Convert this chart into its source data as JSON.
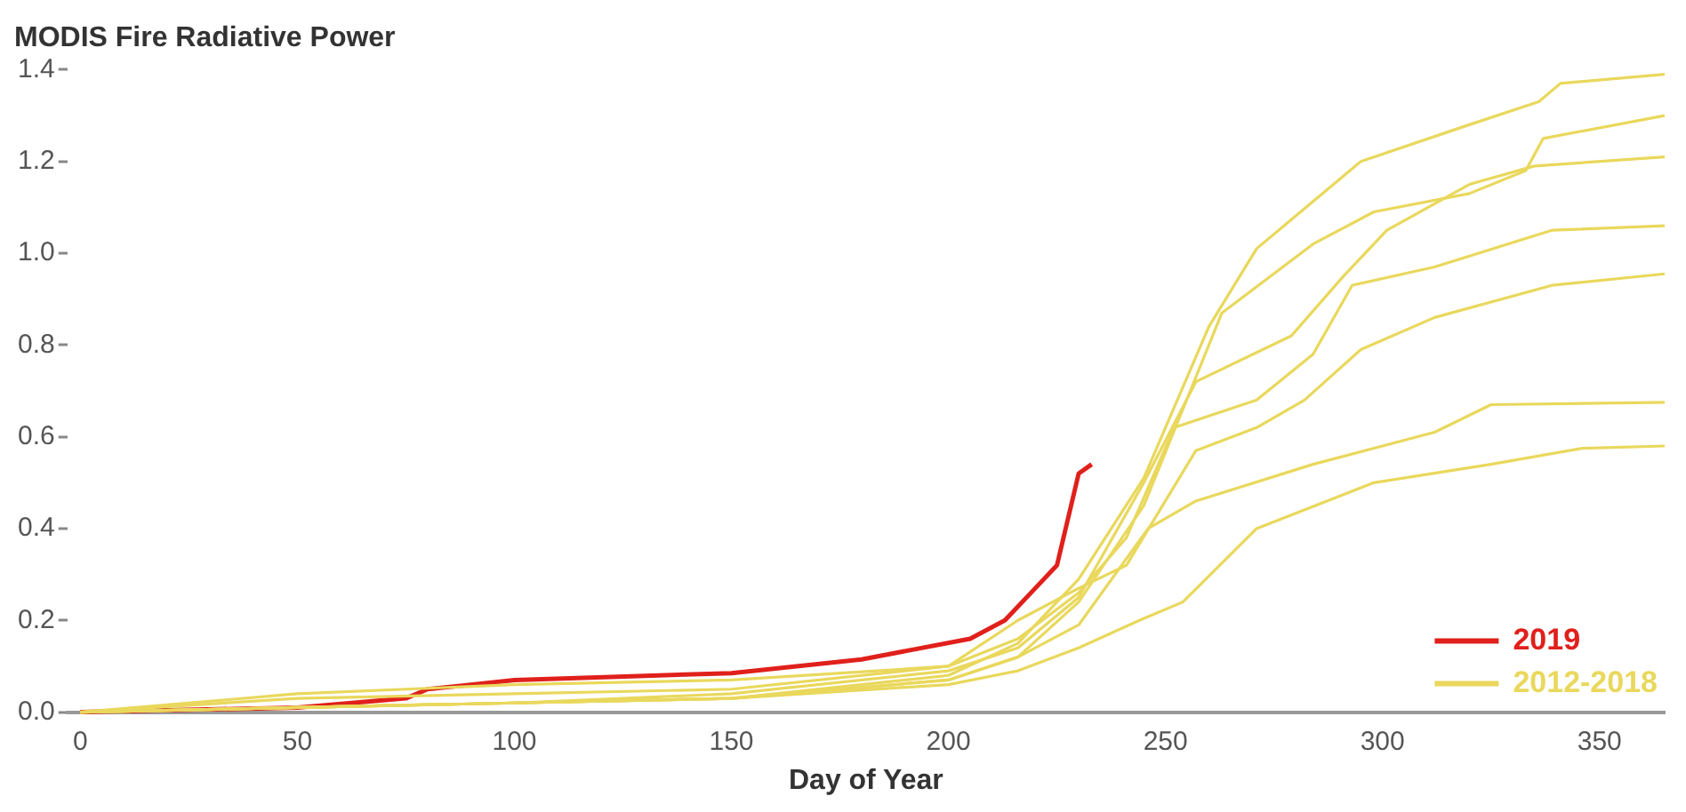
{
  "chart_data": {
    "type": "line",
    "title": "MODIS Fire Radiative Power",
    "xlabel": "Day of Year",
    "xlim": [
      -3,
      365
    ],
    "xticks": [
      0,
      50,
      100,
      150,
      200,
      250,
      300,
      350
    ],
    "ylim": [
      0,
      1.4
    ],
    "yticks": [
      {
        "value": 0,
        "label": "0.0"
      },
      0.2,
      0.4,
      0.6,
      0.8,
      {
        "value": 1,
        "label": "1.0"
      },
      1.2,
      1.4
    ],
    "grid": false,
    "legend": "bottom right",
    "marker": "none",
    "line_style": "solid",
    "series": [
      {
        "name": "2012-2018",
        "color": "#e9d85c",
        "x": [
          0,
          50,
          100,
          150,
          200,
          216,
          230,
          245,
          260,
          271,
          295,
          320,
          336,
          341,
          365
        ],
        "values": [
          0,
          0.01,
          0.02,
          0.03,
          0.08,
          0.15,
          0.29,
          0.51,
          0.84,
          1.01,
          1.2,
          1.28,
          1.33,
          1.37,
          1.39
        ]
      },
      {
        "color": "#e9d85c",
        "x": [
          0,
          50,
          100,
          150,
          200,
          216,
          230,
          245,
          263,
          284,
          298,
          320,
          333,
          337,
          365
        ],
        "values": [
          0,
          0.01,
          0.02,
          0.03,
          0.07,
          0.12,
          0.24,
          0.45,
          0.87,
          1.02,
          1.09,
          1.13,
          1.18,
          1.25,
          1.3
        ]
      },
      {
        "color": "#e9d85c",
        "x": [
          0,
          50,
          100,
          150,
          200,
          216,
          230,
          245,
          257,
          279,
          291,
          301,
          320,
          335,
          365
        ],
        "values": [
          0,
          0.01,
          0.02,
          0.04,
          0.09,
          0.14,
          0.25,
          0.5,
          0.72,
          0.82,
          0.95,
          1.05,
          1.15,
          1.19,
          1.21
        ]
      },
      {
        "color": "#e9d85c",
        "x": [
          0,
          50,
          100,
          150,
          200,
          216,
          230,
          241,
          252,
          271,
          284,
          293,
          312,
          339,
          365
        ],
        "values": [
          0,
          0.03,
          0.04,
          0.05,
          0.1,
          0.16,
          0.26,
          0.38,
          0.62,
          0.68,
          0.78,
          0.93,
          0.97,
          1.05,
          1.06
        ]
      },
      {
        "color": "#e9d85c",
        "x": [
          0,
          50,
          100,
          150,
          200,
          216,
          230,
          241,
          257,
          271,
          282,
          295,
          312,
          339,
          365
        ],
        "values": [
          0,
          0.04,
          0.06,
          0.07,
          0.1,
          0.2,
          0.27,
          0.32,
          0.57,
          0.62,
          0.68,
          0.79,
          0.86,
          0.93,
          0.955
        ]
      },
      {
        "color": "#e9d85c",
        "x": [
          0,
          50,
          100,
          150,
          200,
          216,
          230,
          246,
          257,
          284,
          312,
          325,
          365
        ],
        "values": [
          0,
          0.01,
          0.02,
          0.03,
          0.07,
          0.12,
          0.19,
          0.4,
          0.46,
          0.54,
          0.61,
          0.67,
          0.675
        ]
      },
      {
        "color": "#e9d85c",
        "x": [
          0,
          50,
          100,
          150,
          200,
          216,
          230,
          244,
          254,
          271,
          298,
          325,
          346,
          365
        ],
        "values": [
          0,
          0.01,
          0.02,
          0.03,
          0.06,
          0.09,
          0.14,
          0.2,
          0.24,
          0.4,
          0.5,
          0.54,
          0.575,
          0.58
        ]
      },
      {
        "name": "2019",
        "color": "#e0201b",
        "x": [
          0,
          50,
          75,
          80,
          100,
          150,
          180,
          205,
          213,
          220,
          225,
          230,
          233
        ],
        "values": [
          0,
          0.01,
          0.03,
          0.05,
          0.07,
          0.085,
          0.115,
          0.16,
          0.2,
          0.27,
          0.32,
          0.52,
          0.54
        ]
      }
    ]
  }
}
